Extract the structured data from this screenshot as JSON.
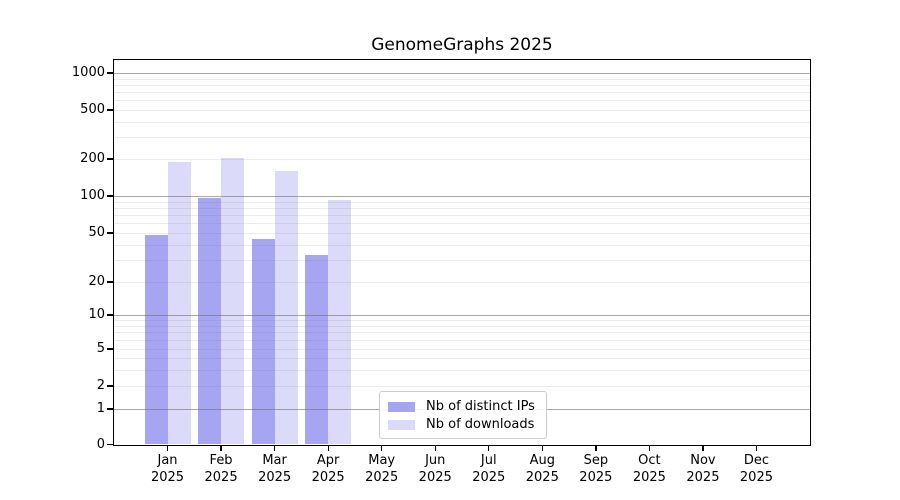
{
  "title": "GenomeGraphs 2025",
  "chart_data": {
    "type": "bar",
    "title": "GenomeGraphs 2025",
    "x_categories": [
      "Jan",
      "Feb",
      "Mar",
      "Apr",
      "May",
      "Jun",
      "Jul",
      "Aug",
      "Sep",
      "Oct",
      "Nov",
      "Dec"
    ],
    "x_year_label": "2025",
    "series": [
      {
        "name": "Nb of distinct IPs",
        "color": "#a5a5f2",
        "values": [
          48,
          96,
          45,
          33,
          null,
          null,
          null,
          null,
          null,
          null,
          null,
          null
        ]
      },
      {
        "name": "Nb of downloads",
        "color": "#dbdbf9",
        "values": [
          190,
          205,
          160,
          93,
          null,
          null,
          null,
          null,
          null,
          null,
          null,
          null
        ]
      }
    ],
    "y_axis": {
      "scale": "log-like",
      "tick_labels": [
        "0",
        "1",
        "2",
        "5",
        "10",
        "20",
        "50",
        "100",
        "200",
        "500",
        "1000"
      ],
      "tick_values": [
        0,
        1,
        2,
        5,
        10,
        20,
        50,
        100,
        200,
        500,
        1000
      ],
      "range_top": 1100
    },
    "grid": "horizontal, drawn over bars; gray lines at powers of 10, light lines at 2-9 multiples",
    "legend_position": "lower center",
    "colors": {
      "major_grid": "rgba(110,110,110,0.60)",
      "minor_grid": "rgba(110,110,110,0.13)",
      "spine": "#000000",
      "background": "#ffffff",
      "legend_border": "#cccccc"
    }
  }
}
